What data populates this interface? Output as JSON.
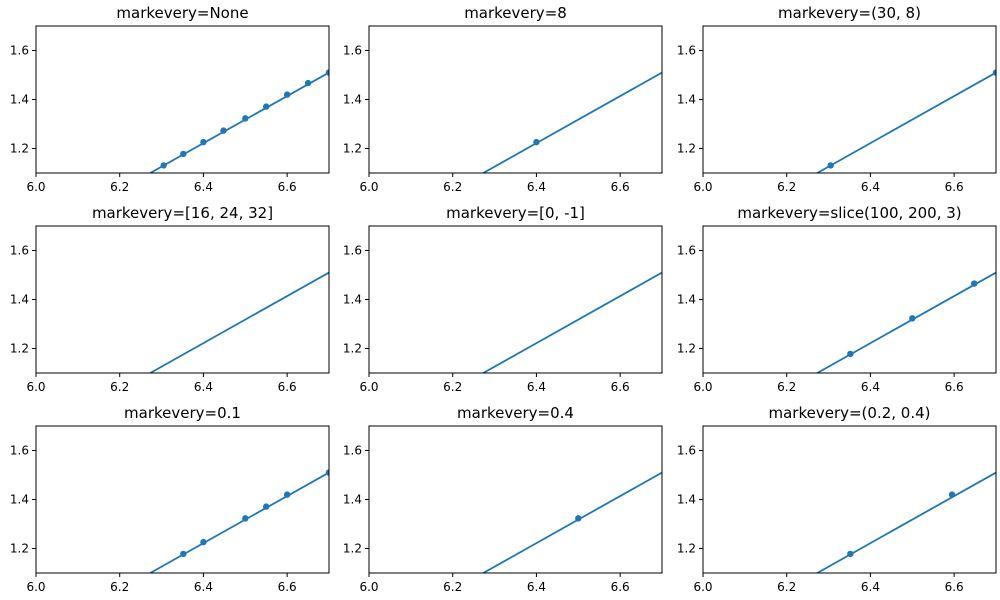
{
  "figure": {
    "line_color": "#1f77b4",
    "axes_color": "#000000",
    "background": "#ffffff"
  },
  "chart_data": [
    {
      "type": "line",
      "title": "markevery=None",
      "xlim": [
        6.0,
        6.7
      ],
      "ylim": [
        1.1,
        1.7
      ],
      "xticks": [
        "6.0",
        "6.2",
        "6.4",
        "6.6"
      ],
      "yticks": [
        "1.2",
        "1.4",
        "1.6"
      ],
      "grid": false,
      "series": [
        {
          "line": {
            "x": [
              6.273,
              6.7
            ],
            "y": [
              1.1,
              1.51
            ]
          },
          "markers": {
            "x": [
              6.305,
              6.352,
              6.4,
              6.448,
              6.5,
              6.55,
              6.6,
              6.65,
              6.7
            ],
            "y": [
              1.131,
              1.178,
              1.226,
              1.273,
              1.323,
              1.371,
              1.42,
              1.467,
              1.51
            ]
          }
        }
      ]
    },
    {
      "type": "line",
      "title": "markevery=8",
      "xlim": [
        6.0,
        6.7
      ],
      "ylim": [
        1.1,
        1.7
      ],
      "xticks": [
        "6.0",
        "6.2",
        "6.4",
        "6.6"
      ],
      "yticks": [
        "1.2",
        "1.4",
        "1.6"
      ],
      "grid": false,
      "series": [
        {
          "line": {
            "x": [
              6.273,
              6.7
            ],
            "y": [
              1.1,
              1.51
            ]
          },
          "markers": {
            "x": [
              6.4
            ],
            "y": [
              1.226
            ]
          }
        }
      ]
    },
    {
      "type": "line",
      "title": "markevery=(30, 8)",
      "xlim": [
        6.0,
        6.7
      ],
      "ylim": [
        1.1,
        1.7
      ],
      "xticks": [
        "6.0",
        "6.2",
        "6.4",
        "6.6"
      ],
      "yticks": [
        "1.2",
        "1.4",
        "1.6"
      ],
      "grid": false,
      "series": [
        {
          "line": {
            "x": [
              6.273,
              6.7
            ],
            "y": [
              1.1,
              1.51
            ]
          },
          "markers": {
            "x": [
              6.305,
              6.7
            ],
            "y": [
              1.131,
              1.51
            ]
          }
        }
      ]
    },
    {
      "type": "line",
      "title": "markevery=[16, 24, 32]",
      "xlim": [
        6.0,
        6.7
      ],
      "ylim": [
        1.1,
        1.7
      ],
      "xticks": [
        "6.0",
        "6.2",
        "6.4",
        "6.6"
      ],
      "yticks": [
        "1.2",
        "1.4",
        "1.6"
      ],
      "grid": false,
      "series": [
        {
          "line": {
            "x": [
              6.273,
              6.7
            ],
            "y": [
              1.1,
              1.51
            ]
          },
          "markers": {
            "x": [],
            "y": []
          }
        }
      ]
    },
    {
      "type": "line",
      "title": "markevery=[0, -1]",
      "xlim": [
        6.0,
        6.7
      ],
      "ylim": [
        1.1,
        1.7
      ],
      "xticks": [
        "6.0",
        "6.2",
        "6.4",
        "6.6"
      ],
      "yticks": [
        "1.2",
        "1.4",
        "1.6"
      ],
      "grid": false,
      "series": [
        {
          "line": {
            "x": [
              6.273,
              6.7
            ],
            "y": [
              1.1,
              1.51
            ]
          },
          "markers": {
            "x": [],
            "y": []
          }
        }
      ]
    },
    {
      "type": "line",
      "title": "markevery=slice(100, 200, 3)",
      "xlim": [
        6.0,
        6.7
      ],
      "ylim": [
        1.1,
        1.7
      ],
      "xticks": [
        "6.0",
        "6.2",
        "6.4",
        "6.6"
      ],
      "yticks": [
        "1.2",
        "1.4",
        "1.6"
      ],
      "grid": false,
      "series": [
        {
          "line": {
            "x": [
              6.273,
              6.7
            ],
            "y": [
              1.1,
              1.51
            ]
          },
          "markers": {
            "x": [
              6.352,
              6.5,
              6.648
            ],
            "y": [
              1.178,
              1.323,
              1.465
            ]
          }
        }
      ]
    },
    {
      "type": "line",
      "title": "markevery=0.1",
      "xlim": [
        6.0,
        6.7
      ],
      "ylim": [
        1.1,
        1.7
      ],
      "xticks": [
        "6.0",
        "6.2",
        "6.4",
        "6.6"
      ],
      "yticks": [
        "1.2",
        "1.4",
        "1.6"
      ],
      "grid": false,
      "series": [
        {
          "line": {
            "x": [
              6.273,
              6.7
            ],
            "y": [
              1.1,
              1.51
            ]
          },
          "markers": {
            "x": [
              6.352,
              6.4,
              6.5,
              6.55,
              6.6,
              6.7
            ],
            "y": [
              1.178,
              1.226,
              1.323,
              1.371,
              1.42,
              1.51
            ]
          }
        }
      ]
    },
    {
      "type": "line",
      "title": "markevery=0.4",
      "xlim": [
        6.0,
        6.7
      ],
      "ylim": [
        1.1,
        1.7
      ],
      "xticks": [
        "6.0",
        "6.2",
        "6.4",
        "6.6"
      ],
      "yticks": [
        "1.2",
        "1.4",
        "1.6"
      ],
      "grid": false,
      "series": [
        {
          "line": {
            "x": [
              6.273,
              6.7
            ],
            "y": [
              1.1,
              1.51
            ]
          },
          "markers": {
            "x": [
              6.5
            ],
            "y": [
              1.323
            ]
          }
        }
      ]
    },
    {
      "type": "line",
      "title": "markevery=(0.2, 0.4)",
      "xlim": [
        6.0,
        6.7
      ],
      "ylim": [
        1.1,
        1.7
      ],
      "xticks": [
        "6.0",
        "6.2",
        "6.4",
        "6.6"
      ],
      "yticks": [
        "1.2",
        "1.4",
        "1.6"
      ],
      "grid": false,
      "series": [
        {
          "line": {
            "x": [
              6.273,
              6.7
            ],
            "y": [
              1.1,
              1.51
            ]
          },
          "markers": {
            "x": [
              6.352,
              6.595
            ],
            "y": [
              1.178,
              1.42
            ]
          }
        }
      ]
    }
  ]
}
